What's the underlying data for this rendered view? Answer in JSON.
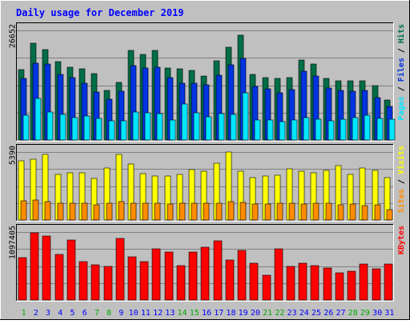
{
  "chart_data": {
    "type": "bar",
    "title": "Daily usage for December 2019",
    "categories": [
      "1",
      "2",
      "3",
      "4",
      "5",
      "6",
      "7",
      "8",
      "9",
      "10",
      "11",
      "12",
      "13",
      "14",
      "15",
      "16",
      "17",
      "18",
      "19",
      "20",
      "21",
      "22",
      "23",
      "24",
      "25",
      "26",
      "27",
      "28",
      "29",
      "30",
      "31"
    ],
    "weekend_days": [
      "1",
      "7",
      "8",
      "14",
      "15",
      "21",
      "22",
      "28",
      "29"
    ],
    "panels": [
      {
        "id": "hits",
        "max_label": "26652",
        "ylim": [
          0,
          26652
        ],
        "series": [
          {
            "name": "Hits",
            "color": "#006e46",
            "values": [
              17200,
              23600,
              21900,
              19000,
              17800,
              17300,
              16100,
              12100,
              14000,
              21700,
              20900,
              21800,
              17500,
              17300,
              17000,
              15600,
              19300,
              22600,
              25500,
              15900,
              15100,
              14900,
              15100,
              19500,
              18500,
              15000,
              14400,
              14300,
              14400,
              13200,
              9700
            ]
          },
          {
            "name": "Files",
            "color": "#0034e0",
            "values": [
              14900,
              18700,
              18500,
              15900,
              15200,
              13900,
              11600,
              10000,
              11800,
              18000,
              17500,
              17800,
              15200,
              13800,
              13800,
              13500,
              15700,
              18200,
              19900,
              13000,
              12400,
              11500,
              12200,
              16800,
              15600,
              12600,
              12000,
              11900,
              12000,
              10300,
              8100
            ]
          },
          {
            "name": "Pages",
            "color": "#00e6ff",
            "values": [
              6000,
              10100,
              6800,
              6300,
              5500,
              5800,
              5300,
              4600,
              4600,
              6900,
              6700,
              6500,
              4800,
              8800,
              6700,
              5600,
              6400,
              6300,
              11400,
              4800,
              4900,
              4400,
              4800,
              5400,
              5000,
              4600,
              5000,
              5400,
              6000,
              5200,
              5100
            ]
          }
        ],
        "axis_labels": [
          {
            "text": "Pages",
            "color": "#00e6ff"
          },
          {
            "text": " / ",
            "color": "#000000"
          },
          {
            "text": "Files",
            "color": "#0034e0"
          },
          {
            "text": " / ",
            "color": "#000000"
          },
          {
            "text": "Hits",
            "color": "#006e46"
          }
        ]
      },
      {
        "id": "visits",
        "max_label": "5390",
        "ylim": [
          0,
          5390
        ],
        "series": [
          {
            "name": "Visits",
            "color": "#ffff00",
            "values": [
              4700,
              4850,
              5200,
              3600,
              3750,
              3720,
              3300,
              4100,
              5200,
              4450,
              3650,
              3500,
              3500,
              3600,
              4000,
              3850,
              4500,
              5400,
              3870,
              3350,
              3500,
              3550,
              4050,
              3850,
              3750,
              3950,
              4300,
              3600,
              4100,
              3950,
              3350
            ]
          },
          {
            "name": "Sites",
            "color": "#ff8c00",
            "values": [
              1550,
              1600,
              1450,
              1350,
              1300,
              1300,
              1200,
              1350,
              1450,
              1300,
              1300,
              1300,
              1280,
              1320,
              1300,
              1350,
              1350,
              1450,
              1380,
              1250,
              1250,
              1300,
              1300,
              1250,
              1300,
              1300,
              1200,
              1250,
              1150,
              1200,
              850
            ]
          }
        ],
        "axis_labels": [
          {
            "text": "Sites",
            "color": "#ff8c00"
          },
          {
            "text": " / ",
            "color": "#000000"
          },
          {
            "text": "Visits",
            "color": "#ffff00"
          }
        ]
      },
      {
        "id": "kbytes",
        "max_label": "1097405",
        "ylim": [
          0,
          1097405
        ],
        "series": [
          {
            "name": "KBytes",
            "color": "#ff0000",
            "values": [
              690000,
              1080000,
              1030000,
              740000,
              970000,
              620000,
              570000,
              540000,
              1000000,
              700000,
              620000,
              830000,
              770000,
              550000,
              780000,
              850000,
              960000,
              640000,
              800000,
              590000,
              400000,
              830000,
              540000,
              600000,
              560000,
              520000,
              440000,
              460000,
              580000,
              500000,
              580000
            ]
          }
        ],
        "axis_labels": [
          {
            "text": "KBytes",
            "color": "#ff0000"
          }
        ]
      }
    ],
    "grid": true
  },
  "colors": {
    "outer_background": "#c0c0c0",
    "plot_background": "#c0c0c0",
    "title_color": "#0000ff",
    "weekday_label": "#0000ff",
    "weekend_label": "#00aa00"
  }
}
